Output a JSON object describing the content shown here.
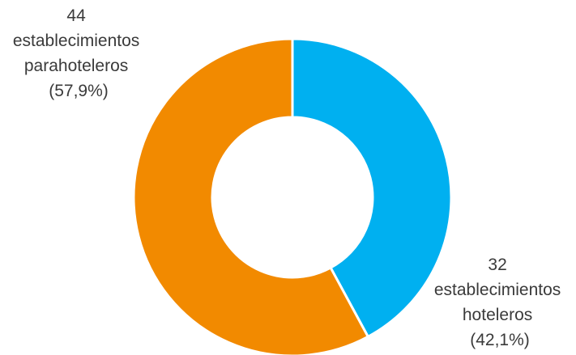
{
  "chart_data": {
    "type": "pie",
    "variant": "donut",
    "title": "",
    "slices": [
      {
        "value": 32,
        "percent": "42,1%",
        "color": "#00b0f0",
        "label_lines": [
          "32",
          "establecimientos",
          "hoteleros",
          "(42,1%)"
        ]
      },
      {
        "value": 44,
        "percent": "57,9%",
        "color": "#f28a00",
        "label_lines": [
          "44",
          "establecimientos",
          "parahoteleros",
          "(57,9%)"
        ]
      }
    ],
    "start_angle": "top (12 o'clock)",
    "direction": "clockwise",
    "legend": "none",
    "separator_color": "#ffffff"
  }
}
